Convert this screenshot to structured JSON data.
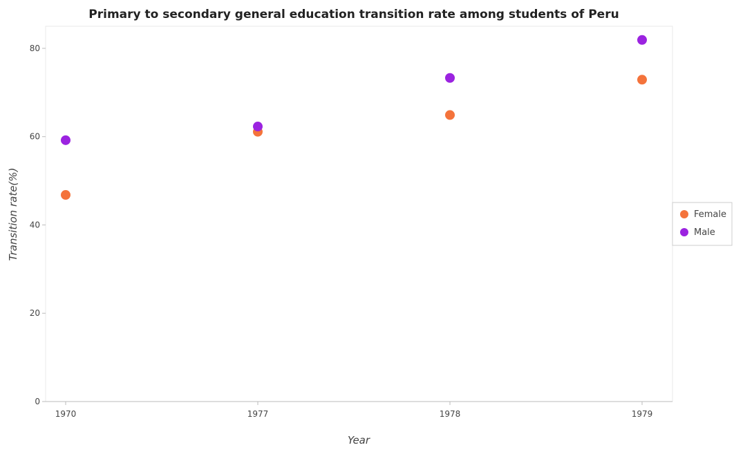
{
  "chart_data": {
    "type": "scatter",
    "title": "Primary to secondary general education transition rate among students of Peru",
    "xlabel": "Year",
    "ylabel": "Transition rate(%)",
    "categories": [
      "1970",
      "1977",
      "1978",
      "1979"
    ],
    "ylim": [
      0,
      85
    ],
    "yticks": [
      0,
      20,
      40,
      60,
      80
    ],
    "grid": false,
    "legend_position": "right",
    "series": [
      {
        "name": "Female",
        "color": "#f4733b",
        "values": [
          46.8,
          61.1,
          64.9,
          72.9
        ]
      },
      {
        "name": "Male",
        "color": "#9b23e0",
        "values": [
          59.2,
          62.3,
          73.3,
          81.9
        ]
      }
    ]
  }
}
